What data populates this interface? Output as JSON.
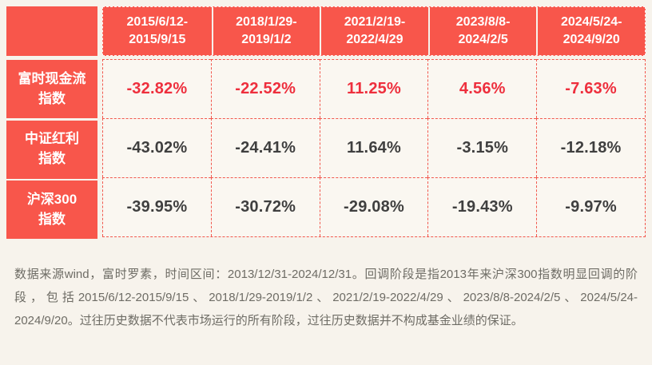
{
  "colors": {
    "brand_red": "#f8564b",
    "highlight_red": "#ee2f3d",
    "cell_bg": "#faf7f1",
    "dash_border_red": "#f2584e",
    "value_gray": "#3f3f3f",
    "footnote_gray": "#6e6c65",
    "page_bg": "#f7f3ec"
  },
  "table": {
    "columns": [
      "2015/6/12-\n2015/9/15",
      "2018/1/29-\n2019/1/2",
      "2021/2/19-\n2022/4/29",
      "2023/8/8-\n2024/2/5",
      "2024/5/24-\n2024/9/20"
    ],
    "rows": [
      {
        "label": "富时现金流\n指数",
        "values": [
          "-32.82%",
          "-22.52%",
          "11.25%",
          "4.56%",
          "-7.63%"
        ]
      },
      {
        "label": "中证红利\n指数",
        "values": [
          "-43.02%",
          "-24.41%",
          "11.64%",
          "-3.15%",
          "-12.18%"
        ]
      },
      {
        "label": "沪深300\n指数",
        "values": [
          "-39.95%",
          "-30.72%",
          "-29.08%",
          "-19.43%",
          "-9.97%"
        ]
      }
    ]
  },
  "footnote": "数据来源wind，富时罗素，时间区间：2013/12/31-2024/12/31。回调阶段是指2013年来沪深300指数明显回调的阶段，包括2015/6/12-2015/9/15、2018/1/29-2019/1/2、2021/2/19-2022/4/29、2023/8/8-2024/2/5、2024/5/24-2024/9/20。过往历史数据不代表市场运行的所有阶段，过往历史数据并不构成基金业绩的保证。",
  "chart_data": {
    "type": "table",
    "categories": [
      "2015/6/12-2015/9/15",
      "2018/1/29-2019/1/2",
      "2021/2/19-2022/4/29",
      "2023/8/8-2024/2/5",
      "2024/5/24-2024/9/20"
    ],
    "series": [
      {
        "name": "富时现金流指数",
        "values": [
          -32.82,
          -22.52,
          11.25,
          4.56,
          -7.63
        ]
      },
      {
        "name": "中证红利指数",
        "values": [
          -43.02,
          -24.41,
          11.64,
          -3.15,
          -12.18
        ]
      },
      {
        "name": "沪深300指数",
        "values": [
          -39.95,
          -30.72,
          -29.08,
          -19.43,
          -9.97
        ]
      }
    ],
    "unit": "%",
    "notes": "回调阶段为2013年来沪深300指数明显回调的阶段"
  }
}
